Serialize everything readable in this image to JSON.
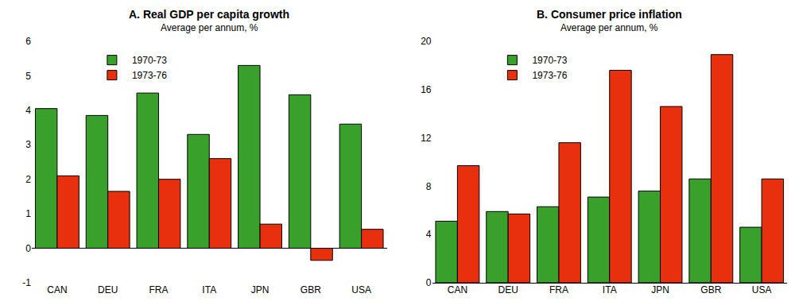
{
  "chart_data": [
    {
      "type": "bar",
      "title": "A. Real GDP per capita growth",
      "subtitle": "Average per annum, %",
      "categories": [
        "CAN",
        "DEU",
        "FRA",
        "ITA",
        "JPN",
        "GBR",
        "USA"
      ],
      "series": [
        {
          "name": "1970-73",
          "color": "#3aa02c",
          "values": [
            4.05,
            3.85,
            4.5,
            3.3,
            5.3,
            4.45,
            3.6
          ]
        },
        {
          "name": "1973-76",
          "color": "#e8300e",
          "values": [
            2.1,
            1.65,
            2.0,
            2.6,
            0.7,
            -0.35,
            0.55
          ]
        }
      ],
      "ylim": [
        -1,
        6
      ],
      "yticks": [
        -1,
        0,
        1,
        2,
        3,
        4,
        5,
        6
      ],
      "grid": false,
      "legend": "upper left"
    },
    {
      "type": "bar",
      "title": "B. Consumer price inflation",
      "subtitle": "Average per annum, %",
      "categories": [
        "CAN",
        "DEU",
        "FRA",
        "ITA",
        "JPN",
        "GBR",
        "USA"
      ],
      "series": [
        {
          "name": "1970-73",
          "color": "#3aa02c",
          "values": [
            5.1,
            5.9,
            6.3,
            7.1,
            7.6,
            8.6,
            4.6
          ]
        },
        {
          "name": "1973-76",
          "color": "#e8300e",
          "values": [
            9.7,
            5.7,
            11.6,
            17.6,
            14.6,
            18.9,
            8.6
          ]
        }
      ],
      "ylim": [
        0,
        20
      ],
      "yticks": [
        0,
        4,
        8,
        12,
        16,
        20
      ],
      "grid": false,
      "legend": "upper left"
    }
  ]
}
